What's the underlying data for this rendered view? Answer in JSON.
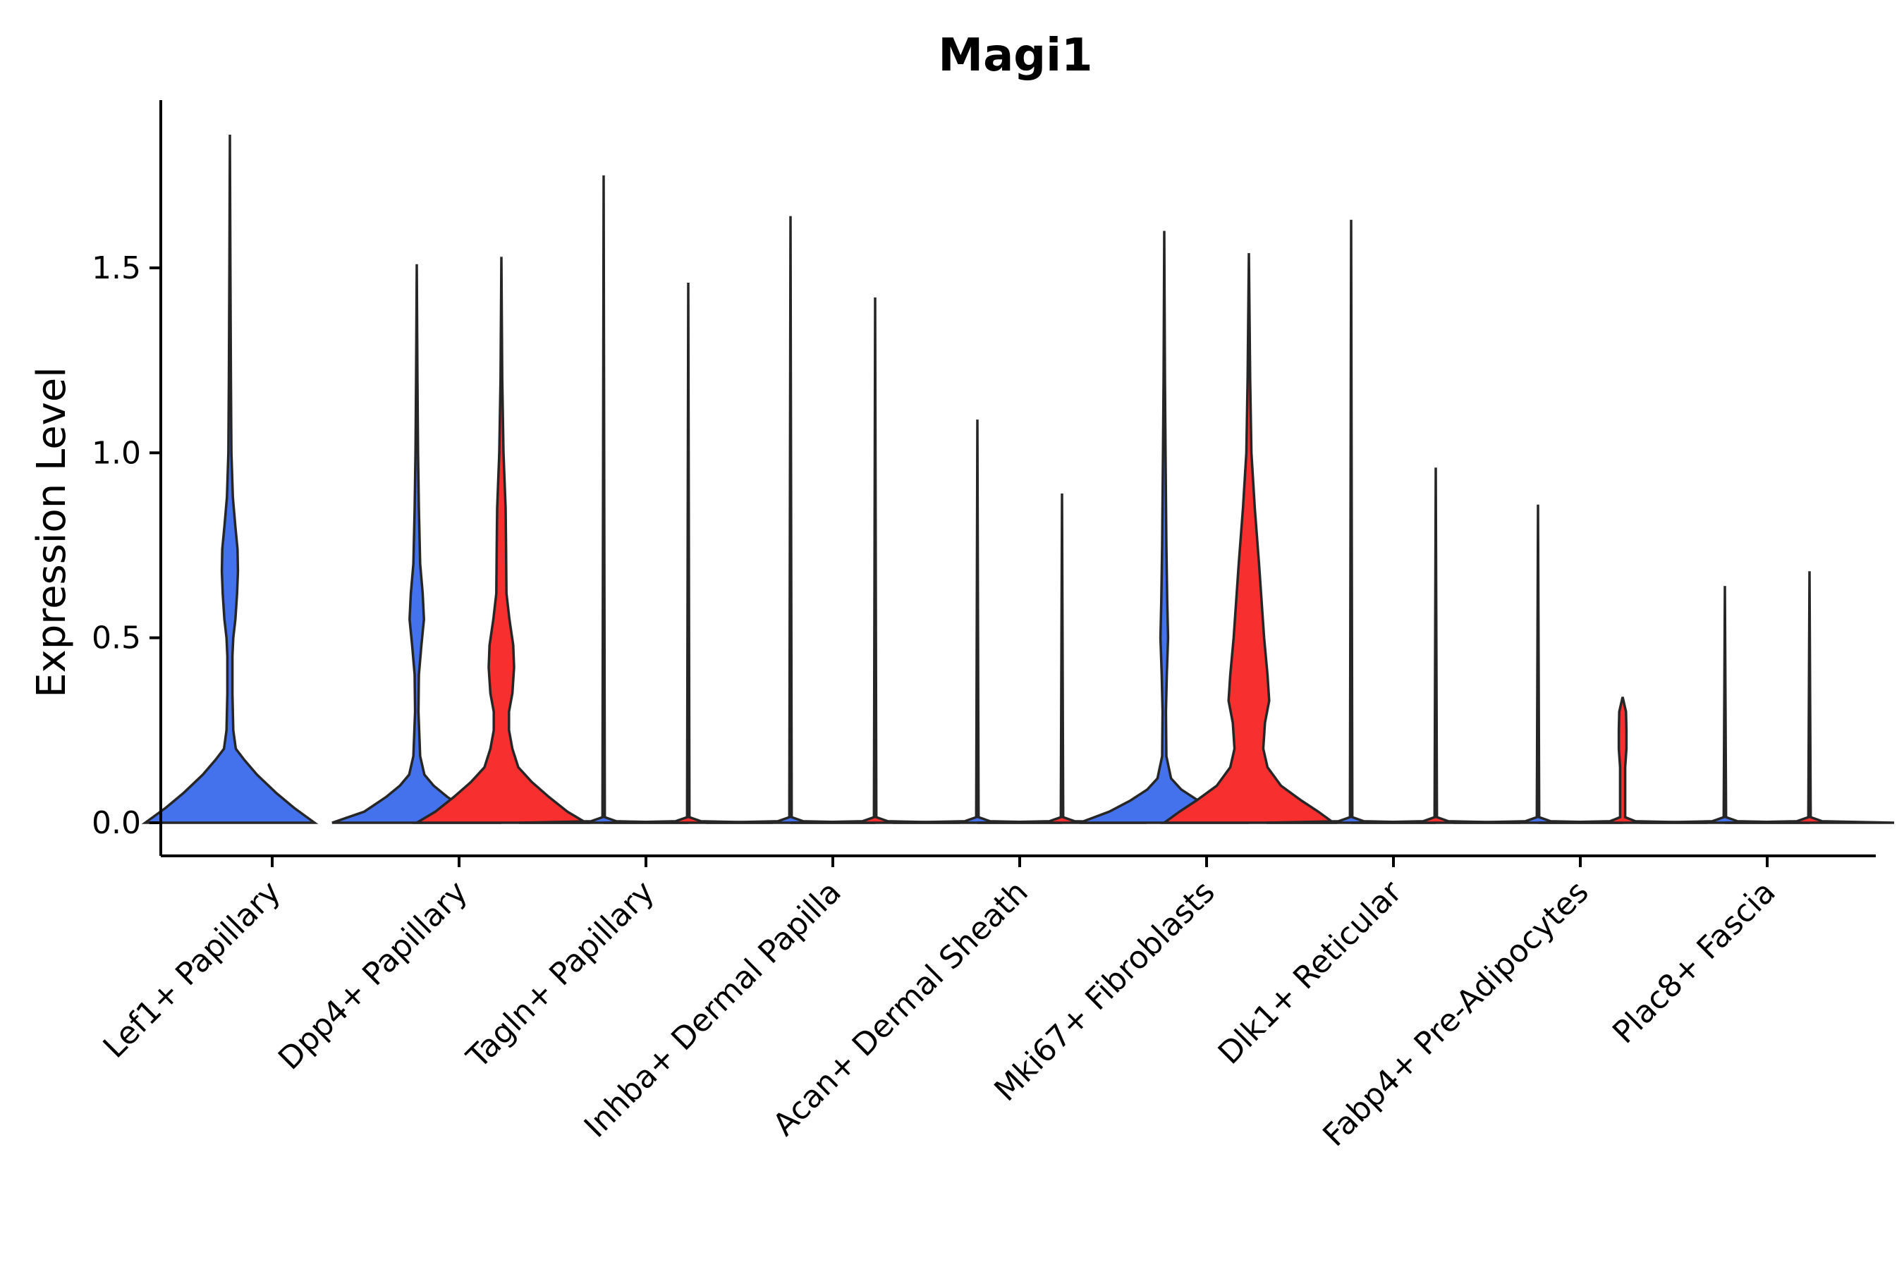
{
  "chart_data": {
    "type": "violin",
    "title": "Magi1",
    "xlabel": "",
    "ylabel": "Expression Level",
    "ylim": [
      -0.09,
      1.95
    ],
    "yticks": [
      0.0,
      0.5,
      1.0,
      1.5
    ],
    "ytick_labels": [
      "0.0",
      "0.5",
      "1.0",
      "1.5"
    ],
    "categories": [
      "Lef1+ Papillary",
      "Dpp4+ Papillary",
      "Tagln+ Papillary",
      "Inhba+ Dermal Papilla",
      "Acan+ Dermal Sheath",
      "Mki67+ Fibroblasts",
      "Dlk1+ Reticular",
      "Fabp4+ Pre-Adipocytes",
      "Plac8+ Fascia"
    ],
    "groups": [
      {
        "name": "blue",
        "color": "#4472ec"
      },
      {
        "name": "red",
        "color": "#f72f2f"
      }
    ],
    "violins": [
      {
        "category": "Lef1+ Papillary",
        "group": "blue",
        "max": 1.86,
        "profile": [
          [
            0,
            1.0
          ],
          [
            0.04,
            0.76
          ],
          [
            0.08,
            0.55
          ],
          [
            0.13,
            0.32
          ],
          [
            0.17,
            0.17
          ],
          [
            0.2,
            0.07
          ],
          [
            0.25,
            0.04
          ],
          [
            0.35,
            0.03
          ],
          [
            0.45,
            0.03
          ],
          [
            0.5,
            0.04
          ],
          [
            0.55,
            0.065
          ],
          [
            0.62,
            0.085
          ],
          [
            0.68,
            0.095
          ],
          [
            0.74,
            0.09
          ],
          [
            0.8,
            0.065
          ],
          [
            0.88,
            0.035
          ],
          [
            1.0,
            0.018
          ],
          [
            1.2,
            0.012
          ],
          [
            1.5,
            0.006
          ],
          [
            1.86,
            0.0
          ]
        ]
      },
      {
        "category": "Dpp4+ Papillary",
        "group": "blue",
        "max": 1.51,
        "profile": [
          [
            0,
            1.0
          ],
          [
            0.03,
            0.62
          ],
          [
            0.07,
            0.36
          ],
          [
            0.1,
            0.2
          ],
          [
            0.13,
            0.09
          ],
          [
            0.18,
            0.04
          ],
          [
            0.3,
            0.02
          ],
          [
            0.4,
            0.025
          ],
          [
            0.48,
            0.055
          ],
          [
            0.55,
            0.085
          ],
          [
            0.62,
            0.07
          ],
          [
            0.7,
            0.04
          ],
          [
            0.85,
            0.025
          ],
          [
            1.0,
            0.015
          ],
          [
            1.2,
            0.008
          ],
          [
            1.51,
            0.0
          ]
        ]
      },
      {
        "category": "Dpp4+ Papillary",
        "group": "red",
        "max": 1.53,
        "profile": [
          [
            0,
            1.0
          ],
          [
            0.03,
            0.78
          ],
          [
            0.07,
            0.56
          ],
          [
            0.11,
            0.36
          ],
          [
            0.15,
            0.2
          ],
          [
            0.2,
            0.13
          ],
          [
            0.25,
            0.09
          ],
          [
            0.3,
            0.09
          ],
          [
            0.35,
            0.13
          ],
          [
            0.42,
            0.15
          ],
          [
            0.48,
            0.14
          ],
          [
            0.55,
            0.095
          ],
          [
            0.62,
            0.06
          ],
          [
            0.75,
            0.055
          ],
          [
            0.85,
            0.05
          ],
          [
            1.0,
            0.025
          ],
          [
            1.2,
            0.01
          ],
          [
            1.53,
            0.0
          ]
        ]
      },
      {
        "category": "Tagln+ Papillary",
        "group": "blue",
        "max": 1.75,
        "profile": [
          [
            0,
            1.0
          ],
          [
            0.004,
            0.15
          ],
          [
            0.015,
            0.014
          ],
          [
            1.75,
            0.0
          ]
        ]
      },
      {
        "category": "Tagln+ Papillary",
        "group": "red",
        "max": 1.46,
        "profile": [
          [
            0,
            1.0
          ],
          [
            0.004,
            0.15
          ],
          [
            0.015,
            0.014
          ],
          [
            1.46,
            0.0
          ]
        ]
      },
      {
        "category": "Inhba+ Dermal Papilla",
        "group": "blue",
        "max": 1.64,
        "profile": [
          [
            0,
            1.0
          ],
          [
            0.004,
            0.15
          ],
          [
            0.015,
            0.014
          ],
          [
            1.64,
            0.0
          ]
        ]
      },
      {
        "category": "Inhba+ Dermal Papilla",
        "group": "red",
        "max": 1.42,
        "profile": [
          [
            0,
            1.0
          ],
          [
            0.004,
            0.15
          ],
          [
            0.015,
            0.014
          ],
          [
            1.42,
            0.0
          ]
        ]
      },
      {
        "category": "Acan+ Dermal Sheath",
        "group": "blue",
        "max": 1.09,
        "profile": [
          [
            0,
            1.0
          ],
          [
            0.004,
            0.15
          ],
          [
            0.015,
            0.014
          ],
          [
            1.09,
            0.0
          ]
        ]
      },
      {
        "category": "Acan+ Dermal Sheath",
        "group": "red",
        "max": 0.89,
        "profile": [
          [
            0,
            1.0
          ],
          [
            0.004,
            0.15
          ],
          [
            0.015,
            0.014
          ],
          [
            0.89,
            0.0
          ]
        ]
      },
      {
        "category": "Mki67+ Fibroblasts",
        "group": "blue",
        "max": 1.6,
        "profile": [
          [
            0,
            1.0
          ],
          [
            0.03,
            0.65
          ],
          [
            0.06,
            0.4
          ],
          [
            0.09,
            0.2
          ],
          [
            0.12,
            0.08
          ],
          [
            0.18,
            0.025
          ],
          [
            0.3,
            0.02
          ],
          [
            0.4,
            0.03
          ],
          [
            0.5,
            0.045
          ],
          [
            0.6,
            0.035
          ],
          [
            0.75,
            0.025
          ],
          [
            1.0,
            0.015
          ],
          [
            1.2,
            0.008
          ],
          [
            1.6,
            0.0
          ]
        ]
      },
      {
        "category": "Mki67+ Fibroblasts",
        "group": "red",
        "max": 1.54,
        "profile": [
          [
            0,
            1.0
          ],
          [
            0.03,
            0.82
          ],
          [
            0.06,
            0.62
          ],
          [
            0.1,
            0.38
          ],
          [
            0.15,
            0.22
          ],
          [
            0.2,
            0.17
          ],
          [
            0.27,
            0.19
          ],
          [
            0.33,
            0.24
          ],
          [
            0.4,
            0.22
          ],
          [
            0.5,
            0.18
          ],
          [
            0.6,
            0.15
          ],
          [
            0.7,
            0.12
          ],
          [
            0.85,
            0.07
          ],
          [
            1.0,
            0.03
          ],
          [
            1.2,
            0.015
          ],
          [
            1.54,
            0.0
          ]
        ]
      },
      {
        "category": "Dlk1+ Reticular",
        "group": "blue",
        "max": 1.63,
        "profile": [
          [
            0,
            1.0
          ],
          [
            0.004,
            0.15
          ],
          [
            0.015,
            0.014
          ],
          [
            1.63,
            0.0
          ]
        ]
      },
      {
        "category": "Dlk1+ Reticular",
        "group": "red",
        "max": 0.96,
        "profile": [
          [
            0,
            1.0
          ],
          [
            0.004,
            0.15
          ],
          [
            0.015,
            0.014
          ],
          [
            0.96,
            0.0
          ]
        ]
      },
      {
        "category": "Fabp4+ Pre-Adipocytes",
        "group": "blue",
        "max": 0.86,
        "profile": [
          [
            0,
            1.0
          ],
          [
            0.004,
            0.15
          ],
          [
            0.015,
            0.014
          ],
          [
            0.86,
            0.0
          ]
        ]
      },
      {
        "category": "Fabp4+ Pre-Adipocytes",
        "group": "red",
        "max": 0.34,
        "profile": [
          [
            0,
            1.0
          ],
          [
            0.004,
            0.15
          ],
          [
            0.015,
            0.03
          ],
          [
            0.15,
            0.03
          ],
          [
            0.2,
            0.045
          ],
          [
            0.25,
            0.045
          ],
          [
            0.3,
            0.04
          ],
          [
            0.34,
            0.0
          ]
        ]
      },
      {
        "category": "Plac8+ Fascia",
        "group": "blue",
        "max": 0.64,
        "profile": [
          [
            0,
            1.0
          ],
          [
            0.004,
            0.15
          ],
          [
            0.015,
            0.014
          ],
          [
            0.64,
            0.0
          ]
        ]
      },
      {
        "category": "Plac8+ Fascia",
        "group": "red",
        "max": 0.68,
        "profile": [
          [
            0,
            1.0
          ],
          [
            0.004,
            0.15
          ],
          [
            0.015,
            0.014
          ],
          [
            0.68,
            0.0
          ]
        ]
      }
    ]
  }
}
